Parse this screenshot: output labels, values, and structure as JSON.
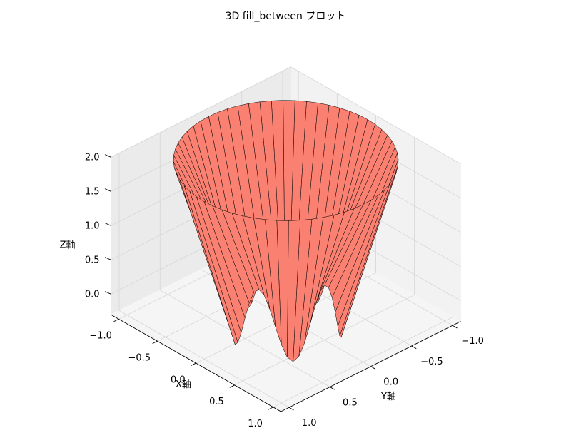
{
  "chart_data": {
    "type": "3d-fill-between",
    "title": "3D fill_between プロット",
    "xlabel": "X軸",
    "ylabel": "Y軸",
    "zlabel": "Z軸",
    "xticks": [
      "−1.0",
      "−0.5",
      "0.0",
      "0.5",
      "1.0"
    ],
    "yticks": [
      "−1.0",
      "−0.5",
      "0.0",
      "0.5",
      "1.0"
    ],
    "zticks": [
      "0.0",
      "0.5",
      "1.0",
      "1.5",
      "2.0"
    ],
    "xlim": [
      -1.1,
      1.1
    ],
    "ylim": [
      -1.1,
      1.1
    ],
    "zlim": [
      -0.3,
      2.0
    ],
    "upper_curve": {
      "radius": 1.0,
      "z": 2.0
    },
    "lower_curve": {
      "radius": 0.5,
      "lobes": 5,
      "z_center": 0.0,
      "z_amplitude": 0.5
    },
    "fill_color": "#fa8072",
    "edge_color": "#000000",
    "grid": true
  }
}
